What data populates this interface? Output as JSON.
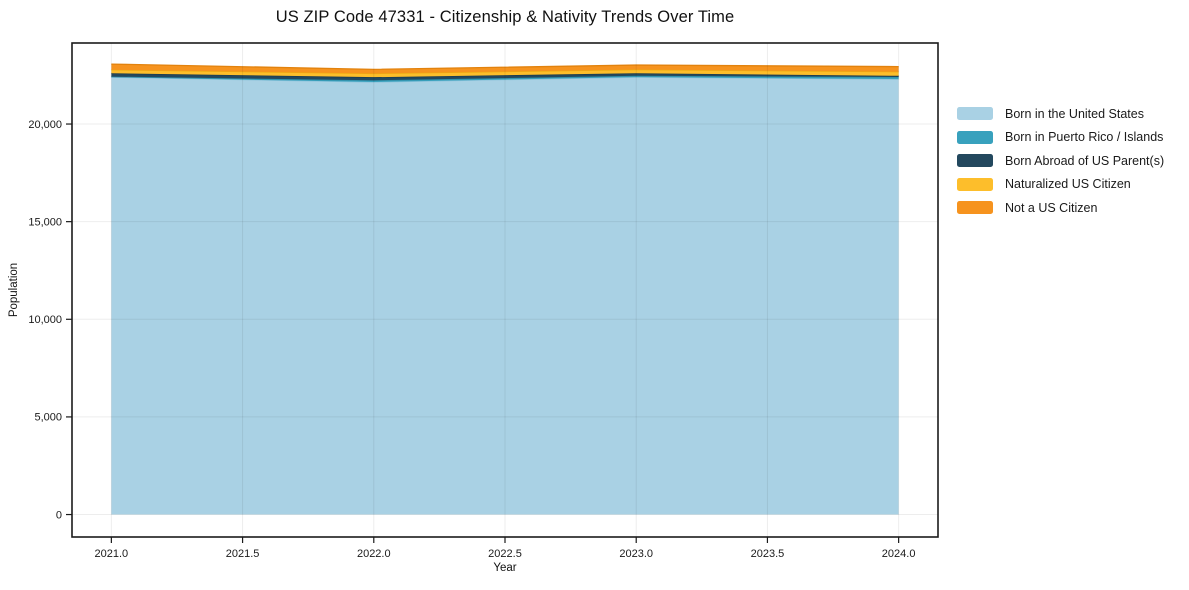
{
  "title": "US ZIP Code 47331 - Citizenship & Nativity Trends Over Time",
  "chart_data": {
    "type": "area",
    "stacked": true,
    "title": "US ZIP Code 47331 - Citizenship & Nativity Trends Over Time",
    "xlabel": "Year",
    "ylabel": "Population",
    "x": [
      2021,
      2022,
      2023,
      2024
    ],
    "series": [
      {
        "name": "Born in the United States",
        "color": "#a9d1e4",
        "line_color": "#8ec3db",
        "values": [
          22400,
          22150,
          22400,
          22300
        ]
      },
      {
        "name": "Born in Puerto Rico / Islands",
        "color": "#38a1bd",
        "line_color": "#2e8ba4",
        "values": [
          30,
          90,
          70,
          110
        ]
      },
      {
        "name": "Born Abroad of US Parent(s)",
        "color": "#23485e",
        "line_color": "#1b3a4d",
        "values": [
          170,
          160,
          130,
          60
        ]
      },
      {
        "name": "Naturalized US Citizen",
        "color": "#fdbe2b",
        "line_color": "#edaa10",
        "values": [
          180,
          190,
          190,
          210
        ]
      },
      {
        "name": "Not a US Citizen",
        "color": "#f6931e",
        "line_color": "#e2820d",
        "values": [
          290,
          210,
          230,
          260
        ]
      }
    ],
    "xlim": [
      2020.85,
      2024.15
    ],
    "ylim": [
      -1150,
      24150
    ],
    "x_ticks": [
      2021.0,
      2021.5,
      2022.0,
      2022.5,
      2023.0,
      2023.5,
      2024.0
    ],
    "x_tick_labels": [
      "2021.0",
      "2021.5",
      "2022.0",
      "2022.5",
      "2023.0",
      "2023.5",
      "2024.0"
    ],
    "y_ticks": [
      0,
      5000,
      10000,
      15000,
      20000
    ],
    "y_tick_labels": [
      "0",
      "5,000",
      "10,000",
      "15,000",
      "20,000"
    ],
    "grid": true,
    "legend_position": "right"
  },
  "colors": {
    "background": "#ffffff",
    "grid_overlay": "rgba(0,0,0,0.07)",
    "axis_border": "#1a1a1a",
    "tick": "#1a1a1a",
    "text": "#1a1a1a"
  }
}
